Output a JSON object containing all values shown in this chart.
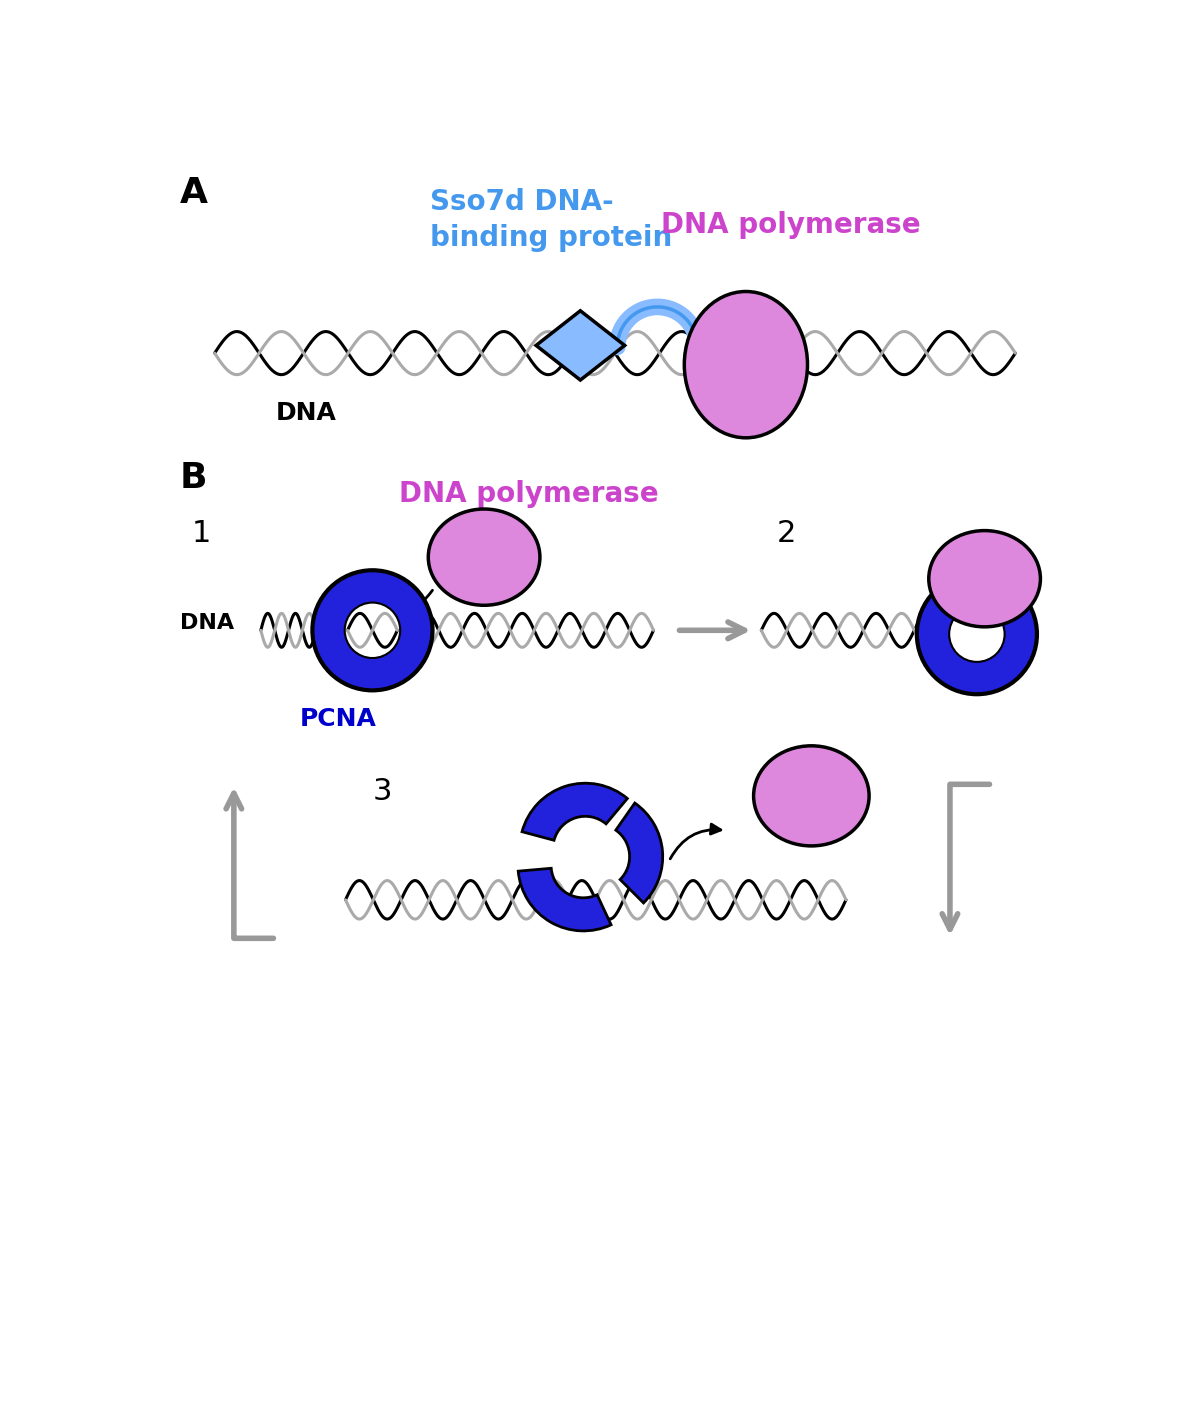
{
  "bg_color": "#ffffff",
  "magenta": "#CC44CC",
  "magenta_fill": "#DD88DD",
  "blue_dark": "#0000CC",
  "blue_fill": "#2222DD",
  "blue_light_fill": "#88BBFF",
  "blue_light_stroke": "#4499EE",
  "gray_arrow": "#999999",
  "black": "#000000",
  "dna_color1": "#000000",
  "dna_color2": "#aaaaaa",
  "label_A": "A",
  "label_B": "B",
  "label_sso7d_line1": "Sso7d DNA-",
  "label_sso7d_line2": "binding protein",
  "label_dna_pol_A": "DNA polymerase",
  "label_dna": "DNA",
  "label_pcna": "PCNA",
  "label_1": "1",
  "label_2": "2",
  "label_3": "3",
  "label_dna_pol_B": "DNA polymerase"
}
